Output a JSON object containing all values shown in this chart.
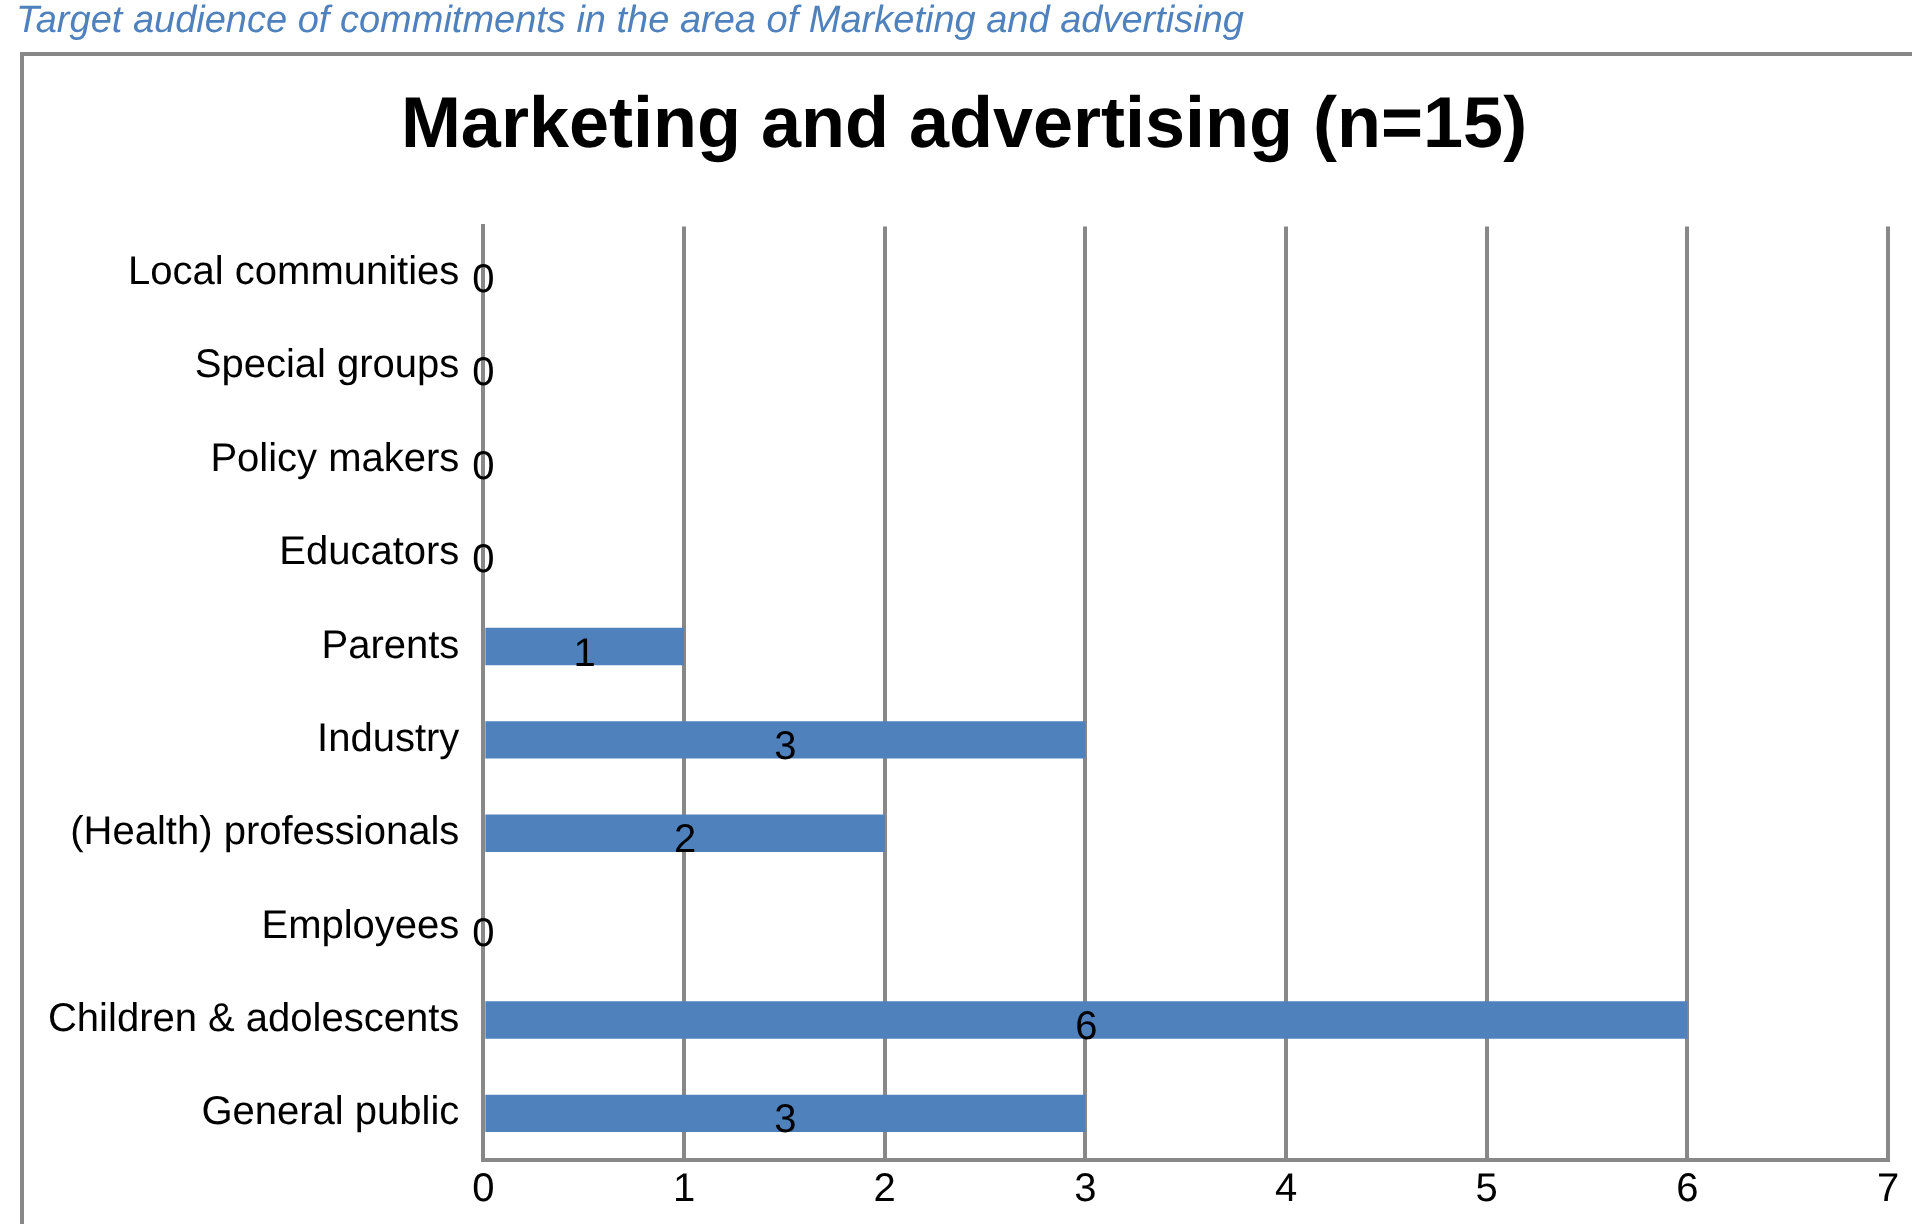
{
  "chart_data": {
    "type": "bar",
    "orientation": "horizontal",
    "title": "Marketing and advertising (n=15)",
    "annotations": [
      "Target audience of commitments in the area of Marketing and advertising"
    ],
    "categories": [
      "Local communities",
      "Special groups",
      "Policy makers",
      "Educators",
      "Parents",
      "Industry",
      "(Health) professionals",
      "Employees",
      "Children & adolescents",
      "General public"
    ],
    "values": [
      0,
      0,
      0,
      0,
      1,
      3,
      2,
      0,
      6,
      3
    ],
    "color": "#4f81bd",
    "xlim": [
      0,
      7
    ],
    "xticks": [
      0,
      1,
      2,
      3,
      4,
      5,
      6,
      7
    ],
    "grid": "x",
    "legend": false,
    "data_labels": true
  }
}
